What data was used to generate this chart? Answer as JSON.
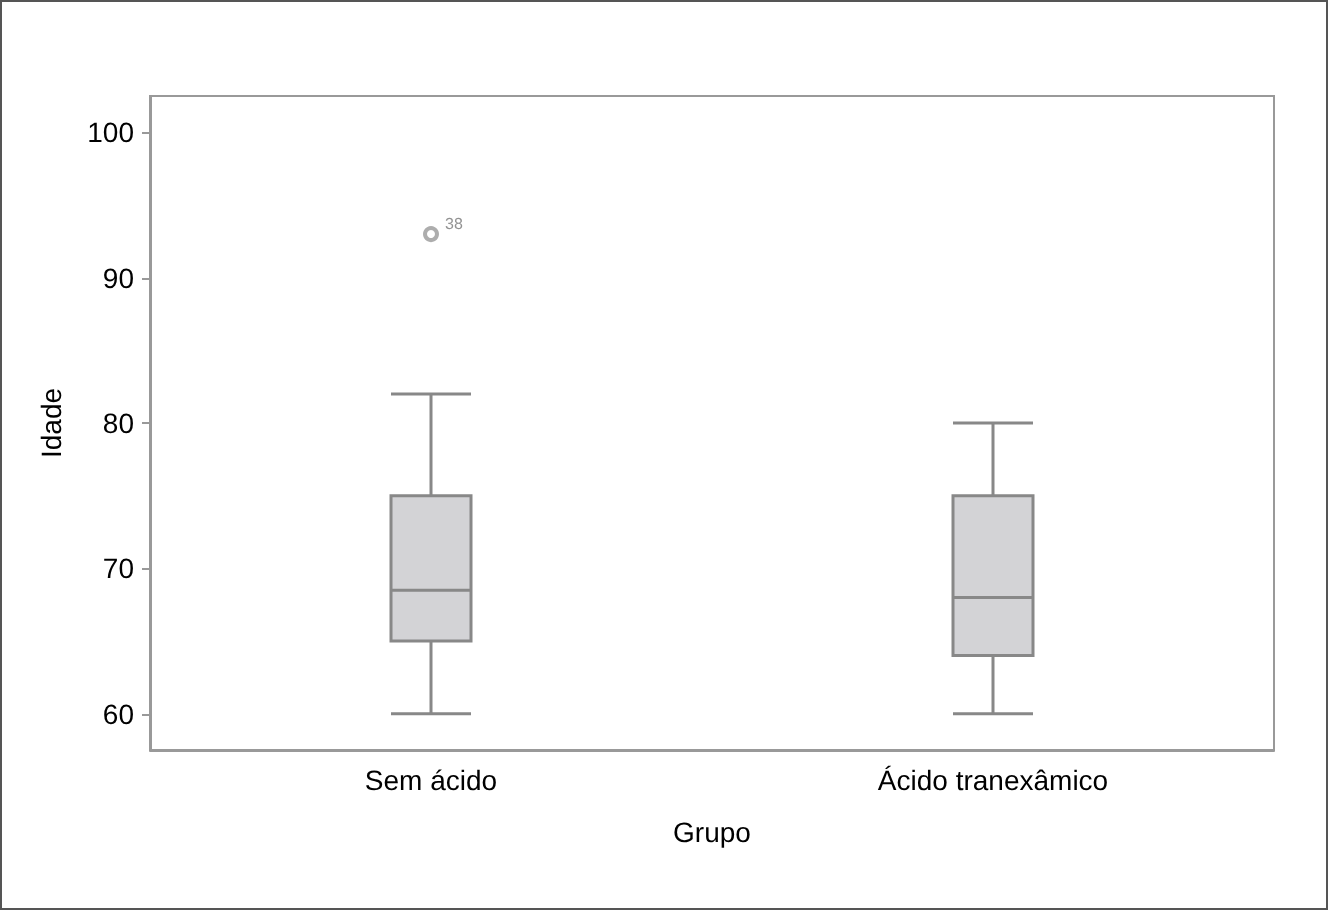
{
  "chart_data": {
    "type": "box",
    "xlabel": "Grupo",
    "ylabel": "Idade",
    "categories": [
      "Sem ácido",
      "Ácido tranexâmico"
    ],
    "boxes": [
      {
        "low": 60,
        "q1": 65,
        "median": 68.5,
        "q3": 75,
        "high": 82,
        "outliers": [
          93
        ]
      },
      {
        "low": 60,
        "q1": 64,
        "median": 68,
        "q3": 75,
        "high": 80
      }
    ],
    "color": "#d3d3d6",
    "ylim": [
      57.5,
      102.5
    ],
    "yticks": [
      60,
      70,
      80,
      90,
      100
    ],
    "grid": false,
    "annotations": [
      "38"
    ]
  }
}
